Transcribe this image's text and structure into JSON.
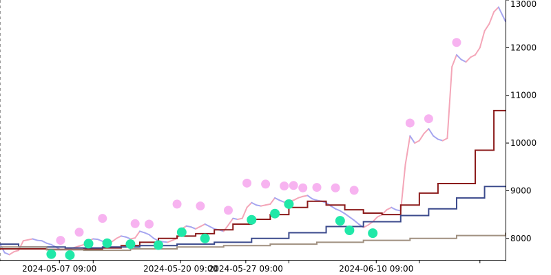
{
  "chart_data": {
    "type": "line",
    "title": "",
    "xlabel": "",
    "ylabel": "",
    "ylim": [
      7550,
      13000
    ],
    "x_range": [
      "2024-05-01 00:00",
      "2024-06-24 06:00"
    ],
    "grid": false,
    "legend": "none",
    "y_ticks": [
      {
        "value": 8000,
        "label": "8000"
      },
      {
        "value": 9000,
        "label": "9000"
      },
      {
        "value": 10000,
        "label": "10000"
      },
      {
        "value": 11000,
        "label": "11000"
      },
      {
        "value": 12000,
        "label": "12000"
      },
      {
        "value": 13000,
        "label": "13000"
      }
    ],
    "x_ticks": [
      {
        "value": "2024-05-07 09:00",
        "label": "2024-05-07 09:00"
      },
      {
        "value": "2024-05-20 09:00",
        "label": "2024-05-20 09:00"
      },
      {
        "value": "2024-05-27 09:00",
        "label": "2024-05-27 09:00"
      },
      {
        "value": "2024-06-10 09:00",
        "label": "2024-06-10 09:00"
      }
    ],
    "x_minor_ticks": [
      "2024-05-11 00:00",
      "2024-06-01 00:00",
      "2024-06-15 00:00",
      "2024-06-21 12:00"
    ],
    "price_series": {
      "colors": {
        "up": "#f4a6b8",
        "down": "#a6a6f0"
      },
      "points": [
        [
          "2024-05-01 00:00",
          7880
        ],
        [
          "2024-05-01 12:00",
          7700
        ],
        [
          "2024-05-02 00:00",
          7660
        ],
        [
          "2024-05-02 12:00",
          7720
        ],
        [
          "2024-05-03 00:00",
          7750
        ],
        [
          "2024-05-03 12:00",
          7950
        ],
        [
          "2024-05-04 00:00",
          7970
        ],
        [
          "2024-05-04 12:00",
          7990
        ],
        [
          "2024-05-05 00:00",
          7960
        ],
        [
          "2024-05-05 12:00",
          7950
        ],
        [
          "2024-05-06 00:00",
          7900
        ],
        [
          "2024-05-06 12:00",
          7870
        ],
        [
          "2024-05-07 00:00",
          7820
        ],
        [
          "2024-05-07 12:00",
          7760
        ],
        [
          "2024-05-08 00:00",
          7770
        ],
        [
          "2024-05-08 12:00",
          7790
        ],
        [
          "2024-05-09 00:00",
          7810
        ],
        [
          "2024-05-09 12:00",
          7840
        ],
        [
          "2024-05-10 00:00",
          7870
        ],
        [
          "2024-05-10 12:00",
          7950
        ],
        [
          "2024-05-11 00:00",
          7990
        ],
        [
          "2024-05-11 12:00",
          7980
        ],
        [
          "2024-05-12 00:00",
          7940
        ],
        [
          "2024-05-12 12:00",
          7920
        ],
        [
          "2024-05-13 00:00",
          7930
        ],
        [
          "2024-05-13 12:00",
          8000
        ],
        [
          "2024-05-14 00:00",
          8050
        ],
        [
          "2024-05-14 12:00",
          8030
        ],
        [
          "2024-05-15 00:00",
          7990
        ],
        [
          "2024-05-15 12:00",
          8010
        ],
        [
          "2024-05-16 00:00",
          8150
        ],
        [
          "2024-05-16 12:00",
          8120
        ],
        [
          "2024-05-17 00:00",
          8080
        ],
        [
          "2024-05-17 12:00",
          8000
        ],
        [
          "2024-05-18 00:00",
          7950
        ],
        [
          "2024-05-18 12:00",
          7930
        ],
        [
          "2024-05-19 00:00",
          7920
        ],
        [
          "2024-05-19 12:00",
          7960
        ],
        [
          "2024-05-20 00:00",
          8000
        ],
        [
          "2024-05-20 12:00",
          8200
        ],
        [
          "2024-05-21 00:00",
          8260
        ],
        [
          "2024-05-21 12:00",
          8240
        ],
        [
          "2024-05-22 00:00",
          8200
        ],
        [
          "2024-05-22 12:00",
          8250
        ],
        [
          "2024-05-23 00:00",
          8300
        ],
        [
          "2024-05-23 12:00",
          8250
        ],
        [
          "2024-05-24 00:00",
          8200
        ],
        [
          "2024-05-24 12:00",
          8180
        ],
        [
          "2024-05-25 00:00",
          8150
        ],
        [
          "2024-05-25 12:00",
          8280
        ],
        [
          "2024-05-26 00:00",
          8420
        ],
        [
          "2024-05-26 12:00",
          8400
        ],
        [
          "2024-05-27 00:00",
          8420
        ],
        [
          "2024-05-27 12:00",
          8650
        ],
        [
          "2024-05-28 00:00",
          8750
        ],
        [
          "2024-05-28 12:00",
          8700
        ],
        [
          "2024-05-29 00:00",
          8680
        ],
        [
          "2024-05-29 12:00",
          8700
        ],
        [
          "2024-05-30 00:00",
          8720
        ],
        [
          "2024-05-30 12:00",
          8850
        ],
        [
          "2024-05-31 00:00",
          8800
        ],
        [
          "2024-05-31 12:00",
          8760
        ],
        [
          "2024-06-01 00:00",
          8780
        ],
        [
          "2024-06-01 12:00",
          8800
        ],
        [
          "2024-06-02 00:00",
          8850
        ],
        [
          "2024-06-02 12:00",
          8880
        ],
        [
          "2024-06-03 00:00",
          8900
        ],
        [
          "2024-06-03 12:00",
          8830
        ],
        [
          "2024-06-04 00:00",
          8800
        ],
        [
          "2024-06-04 12:00",
          8780
        ],
        [
          "2024-06-05 00:00",
          8750
        ],
        [
          "2024-06-05 12:00",
          8680
        ],
        [
          "2024-06-06 00:00",
          8620
        ],
        [
          "2024-06-06 12:00",
          8580
        ],
        [
          "2024-06-07 00:00",
          8520
        ],
        [
          "2024-06-07 12:00",
          8450
        ],
        [
          "2024-06-08 00:00",
          8380
        ],
        [
          "2024-06-08 12:00",
          8300
        ],
        [
          "2024-06-09 00:00",
          8230
        ],
        [
          "2024-06-09 12:00",
          8280
        ],
        [
          "2024-06-10 00:00",
          8350
        ],
        [
          "2024-06-10 12:00",
          8450
        ],
        [
          "2024-06-11 00:00",
          8500
        ],
        [
          "2024-06-11 12:00",
          8600
        ],
        [
          "2024-06-12 00:00",
          8650
        ],
        [
          "2024-06-12 12:00",
          8600
        ],
        [
          "2024-06-13 00:00",
          8580
        ],
        [
          "2024-06-13 12:00",
          9550
        ],
        [
          "2024-06-14 00:00",
          10150
        ],
        [
          "2024-06-14 12:00",
          10000
        ],
        [
          "2024-06-15 00:00",
          10050
        ],
        [
          "2024-06-15 12:00",
          10200
        ],
        [
          "2024-06-16 00:00",
          10300
        ],
        [
          "2024-06-16 12:00",
          10150
        ],
        [
          "2024-06-17 00:00",
          10080
        ],
        [
          "2024-06-17 12:00",
          10050
        ],
        [
          "2024-06-18 00:00",
          10100
        ],
        [
          "2024-06-18 12:00",
          11600
        ],
        [
          "2024-06-19 00:00",
          11850
        ],
        [
          "2024-06-19 12:00",
          11750
        ],
        [
          "2024-06-20 00:00",
          11700
        ],
        [
          "2024-06-20 12:00",
          11800
        ],
        [
          "2024-06-21 00:00",
          11850
        ],
        [
          "2024-06-21 12:00",
          12000
        ],
        [
          "2024-06-22 00:00",
          12350
        ],
        [
          "2024-06-22 12:00",
          12500
        ],
        [
          "2024-06-23 00:00",
          12750
        ],
        [
          "2024-06-23 12:00",
          12850
        ],
        [
          "2024-06-24 00:00",
          12650
        ],
        [
          "2024-06-24 06:00",
          12550
        ]
      ]
    },
    "step_series": [
      {
        "color": "#8b1a1a",
        "points": [
          [
            "2024-05-01 00:00",
            7780
          ],
          [
            "2024-05-06 00:00",
            7770
          ],
          [
            "2024-05-10 00:00",
            7780
          ],
          [
            "2024-05-12 00:00",
            7800
          ],
          [
            "2024-05-14 00:00",
            7850
          ],
          [
            "2024-05-16 00:00",
            7920
          ],
          [
            "2024-05-18 00:00",
            8000
          ],
          [
            "2024-05-20 00:00",
            8050
          ],
          [
            "2024-05-22 00:00",
            8100
          ],
          [
            "2024-05-24 00:00",
            8180
          ],
          [
            "2024-05-26 00:00",
            8300
          ],
          [
            "2024-05-28 00:00",
            8400
          ],
          [
            "2024-05-30 00:00",
            8500
          ],
          [
            "2024-06-01 00:00",
            8650
          ],
          [
            "2024-06-03 00:00",
            8780
          ],
          [
            "2024-06-05 00:00",
            8700
          ],
          [
            "2024-06-07 00:00",
            8600
          ],
          [
            "2024-06-09 00:00",
            8530
          ],
          [
            "2024-06-11 00:00",
            8500
          ],
          [
            "2024-06-13 00:00",
            8700
          ],
          [
            "2024-06-15 00:00",
            8950
          ],
          [
            "2024-06-17 00:00",
            9150
          ],
          [
            "2024-06-21 00:00",
            9850
          ],
          [
            "2024-06-23 00:00",
            10680
          ],
          [
            "2024-06-24 06:00",
            10680
          ]
        ]
      },
      {
        "color": "#3b4a8c",
        "points": [
          [
            "2024-05-01 00:00",
            7880
          ],
          [
            "2024-05-03 00:00",
            7820
          ],
          [
            "2024-05-08 00:00",
            7800
          ],
          [
            "2024-05-12 00:00",
            7820
          ],
          [
            "2024-05-16 00:00",
            7850
          ],
          [
            "2024-05-20 00:00",
            7880
          ],
          [
            "2024-05-24 00:00",
            7920
          ],
          [
            "2024-05-28 00:00",
            8000
          ],
          [
            "2024-06-01 00:00",
            8120
          ],
          [
            "2024-06-05 00:00",
            8250
          ],
          [
            "2024-06-09 00:00",
            8350
          ],
          [
            "2024-06-13 00:00",
            8480
          ],
          [
            "2024-06-16 00:00",
            8620
          ],
          [
            "2024-06-19 00:00",
            8850
          ],
          [
            "2024-06-22 00:00",
            9090
          ],
          [
            "2024-06-24 06:00",
            9090
          ]
        ]
      },
      {
        "color": "#a09080",
        "points": [
          [
            "2024-05-01 00:00",
            7820
          ],
          [
            "2024-05-06 00:00",
            7760
          ],
          [
            "2024-05-10 00:00",
            7750
          ],
          [
            "2024-05-15 00:00",
            7780
          ],
          [
            "2024-05-20 00:00",
            7820
          ],
          [
            "2024-05-25 00:00",
            7850
          ],
          [
            "2024-05-30 00:00",
            7880
          ],
          [
            "2024-06-04 00:00",
            7920
          ],
          [
            "2024-06-09 00:00",
            7960
          ],
          [
            "2024-06-14 00:00",
            8000
          ],
          [
            "2024-06-19 00:00",
            8060
          ],
          [
            "2024-06-24 06:00",
            8120
          ]
        ]
      }
    ],
    "peak_markers": {
      "color": "#f7b3f0",
      "points": [
        [
          "2024-05-07 12:00",
          7960
        ],
        [
          "2024-05-09 12:00",
          8130
        ],
        [
          "2024-05-12 00:00",
          8420
        ],
        [
          "2024-05-15 12:00",
          8310
        ],
        [
          "2024-05-17 00:00",
          8300
        ],
        [
          "2024-05-20 00:00",
          8720
        ],
        [
          "2024-05-22 12:00",
          8680
        ],
        [
          "2024-05-25 12:00",
          8590
        ],
        [
          "2024-05-27 12:00",
          9160
        ],
        [
          "2024-05-29 12:00",
          9140
        ],
        [
          "2024-05-31 12:00",
          9100
        ],
        [
          "2024-06-01 12:00",
          9110
        ],
        [
          "2024-06-02 12:00",
          9060
        ],
        [
          "2024-06-04 00:00",
          9070
        ],
        [
          "2024-06-06 00:00",
          9060
        ],
        [
          "2024-06-08 00:00",
          9010
        ],
        [
          "2024-06-14 00:00",
          10420
        ],
        [
          "2024-06-16 00:00",
          10510
        ],
        [
          "2024-06-19 00:00",
          12110
        ]
      ]
    },
    "trough_markers": {
      "color": "#20e8a8",
      "points": [
        [
          "2024-05-06 12:00",
          7670
        ],
        [
          "2024-05-08 12:00",
          7650
        ],
        [
          "2024-05-10 12:00",
          7890
        ],
        [
          "2024-05-12 12:00",
          7900
        ],
        [
          "2024-05-15 00:00",
          7880
        ],
        [
          "2024-05-18 00:00",
          7860
        ],
        [
          "2024-05-20 12:00",
          8130
        ],
        [
          "2024-05-23 00:00",
          8000
        ],
        [
          "2024-05-28 00:00",
          8390
        ],
        [
          "2024-05-30 12:00",
          8520
        ],
        [
          "2024-06-01 00:00",
          8720
        ],
        [
          "2024-06-06 12:00",
          8370
        ],
        [
          "2024-06-07 12:00",
          8170
        ],
        [
          "2024-06-10 00:00",
          8110
        ]
      ]
    }
  }
}
